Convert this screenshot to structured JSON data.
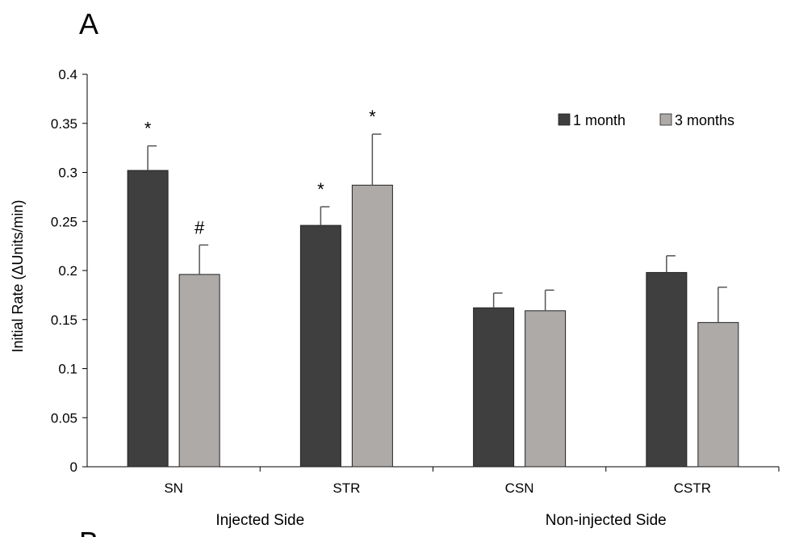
{
  "panel_label": "A",
  "chart_data": {
    "type": "bar",
    "title": "",
    "ylabel": "Initial Rate (ΔUnits/min)",
    "ylim": [
      0,
      0.4
    ],
    "yticks": [
      0,
      0.05,
      0.1,
      0.15,
      0.2,
      0.25,
      0.3,
      0.35,
      0.4
    ],
    "ytick_labels": [
      "0",
      "0.05",
      "0.1",
      "0.15",
      "0.2",
      "0.25",
      "0.3",
      "0.35",
      "0.4"
    ],
    "categories": [
      "SN",
      "STR",
      "CSN",
      "CSTR"
    ],
    "groups": [
      {
        "label": "Injected Side",
        "categories": [
          "SN",
          "STR"
        ]
      },
      {
        "label": "Non-injected Side",
        "categories": [
          "CSN",
          "CSTR"
        ]
      }
    ],
    "series": [
      {
        "name": "1 month",
        "color": "#3f3f3f",
        "values": [
          0.302,
          0.246,
          0.162,
          0.198
        ],
        "errors": [
          0.025,
          0.019,
          0.015,
          0.017
        ],
        "annotations": [
          "*",
          "*",
          "",
          ""
        ]
      },
      {
        "name": "3 months",
        "color": "#adaaa8",
        "values": [
          0.196,
          0.287,
          0.159,
          0.147
        ],
        "errors": [
          0.03,
          0.052,
          0.021,
          0.036
        ],
        "annotations": [
          "#",
          "*",
          "",
          ""
        ]
      }
    ],
    "legend_position": "top-right",
    "grid": false
  },
  "partial_next_panel_label": "B"
}
